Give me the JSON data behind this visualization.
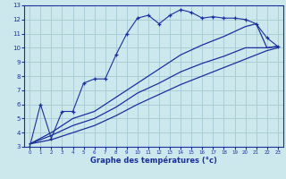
{
  "xlabel": "Graphe des températures (°c)",
  "bg_color": "#cce8ed",
  "line_color": "#1a2f9e",
  "grid_color": "#aacdd6",
  "xmin": -0.5,
  "xmax": 23.5,
  "ymin": 3,
  "ymax": 13,
  "xticks": [
    0,
    1,
    2,
    3,
    4,
    5,
    6,
    7,
    8,
    9,
    10,
    11,
    12,
    13,
    14,
    15,
    16,
    17,
    18,
    19,
    20,
    21,
    22,
    23
  ],
  "yticks": [
    3,
    4,
    5,
    6,
    7,
    8,
    9,
    10,
    11,
    12,
    13
  ],
  "series1_x": [
    0,
    1,
    2,
    3,
    4,
    5,
    6,
    7,
    8,
    9,
    10,
    11,
    12,
    13,
    14,
    15,
    16,
    17,
    18,
    19,
    20,
    21,
    22,
    23
  ],
  "series1_y": [
    3.0,
    6.0,
    3.6,
    5.5,
    5.5,
    7.5,
    7.8,
    7.8,
    9.5,
    11.0,
    12.1,
    12.3,
    11.7,
    12.3,
    12.7,
    12.5,
    12.1,
    12.2,
    12.1,
    12.1,
    12.0,
    11.7,
    10.7,
    10.1
  ],
  "series2_x": [
    0,
    2,
    4,
    6,
    8,
    10,
    12,
    14,
    16,
    18,
    20,
    21,
    22,
    23
  ],
  "series2_y": [
    3.2,
    4.0,
    5.0,
    5.5,
    6.5,
    7.5,
    8.5,
    9.5,
    10.2,
    10.8,
    11.5,
    11.7,
    10.0,
    10.1
  ],
  "series3_x": [
    0,
    2,
    4,
    6,
    8,
    10,
    12,
    14,
    16,
    18,
    20,
    22,
    23
  ],
  "series3_y": [
    3.2,
    3.8,
    4.5,
    5.0,
    5.8,
    6.8,
    7.5,
    8.3,
    8.9,
    9.4,
    10.0,
    10.0,
    10.1
  ],
  "series4_x": [
    0,
    2,
    4,
    6,
    8,
    10,
    12,
    14,
    16,
    18,
    20,
    22,
    23
  ],
  "series4_y": [
    3.2,
    3.5,
    4.0,
    4.5,
    5.2,
    6.0,
    6.7,
    7.4,
    8.0,
    8.6,
    9.2,
    9.8,
    10.0
  ]
}
